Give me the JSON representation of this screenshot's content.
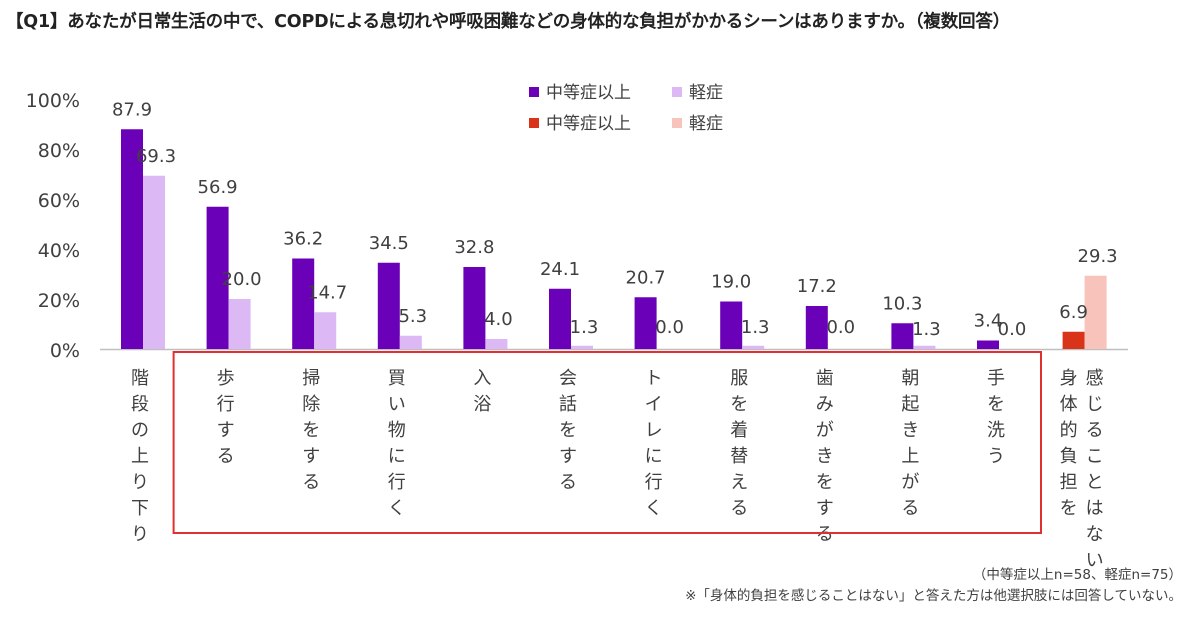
{
  "title": "【Q1】あなたが日常生活の中で、COPDによる息切れや呼吸困難などの身体的な負担がかかるシーンはありますか。（複数回答）",
  "note_sample": "（中等症以上n=58、軽症n=75）",
  "note_footnote": "※「身体的負担を感じることはない」と答えた方は他選択肢には回答していない。",
  "colors": {
    "moderate": "#6a00b8",
    "mild": "#dcb8f5",
    "moderate_none": "#d9341a",
    "mild_none": "#f7c3ba",
    "highlight_box": "#e03030",
    "axis": "#bfbfbf"
  },
  "chart_data": {
    "type": "bar",
    "categories": [
      "階段の上り下り",
      "歩行する",
      "掃除をする",
      "買い物に行く",
      "入浴",
      "会話をする",
      "トイレに行く",
      "服を着替える",
      "歯みがきをする",
      "朝起き上がる",
      "手を洗う",
      "身体的負担を感じることはない"
    ],
    "category_label_columns": [
      [
        "階段の上り下り"
      ],
      [
        "歩行する"
      ],
      [
        "掃除をする"
      ],
      [
        "買い物に行く"
      ],
      [
        "入浴"
      ],
      [
        "会話をする"
      ],
      [
        "トイレに行く"
      ],
      [
        "服を着替える"
      ],
      [
        "歯みがきをする"
      ],
      [
        "朝起き上がる"
      ],
      [
        "手を洗う"
      ],
      [
        "感じることはない",
        "身体的負担を"
      ]
    ],
    "series": [
      {
        "name": "中等症以上",
        "values": [
          87.9,
          56.9,
          36.2,
          34.5,
          32.8,
          24.1,
          20.7,
          19.0,
          17.2,
          10.3,
          3.4,
          6.9
        ]
      },
      {
        "name": "軽症",
        "values": [
          69.3,
          20.0,
          14.7,
          5.3,
          4.0,
          1.3,
          0.0,
          1.3,
          0.0,
          1.3,
          0.0,
          29.3
        ]
      }
    ],
    "value_labels": [
      [
        "87.9",
        "56.9",
        "36.2",
        "34.5",
        "32.8",
        "24.1",
        "20.7",
        "19.0",
        "17.2",
        "10.3",
        "3.4",
        "6.9"
      ],
      [
        "69.3",
        "20.0",
        "14.7",
        "5.3",
        "4.0",
        "1.3",
        "0.0",
        "1.3",
        "0.0",
        "1.3",
        "0.0",
        "29.3"
      ]
    ],
    "legend": [
      {
        "label": "中等症以上",
        "color_key": "moderate"
      },
      {
        "label": "軽症",
        "color_key": "mild"
      },
      {
        "label": "中等症以上",
        "color_key": "moderate_none"
      },
      {
        "label": "軽症",
        "color_key": "mild_none"
      }
    ],
    "legend_position": "top-center",
    "y_ticks": [
      "0%",
      "20%",
      "40%",
      "60%",
      "80%",
      "100%"
    ],
    "ylim": [
      0,
      100
    ],
    "grid": false,
    "highlighted_categories": [
      1,
      10
    ]
  }
}
